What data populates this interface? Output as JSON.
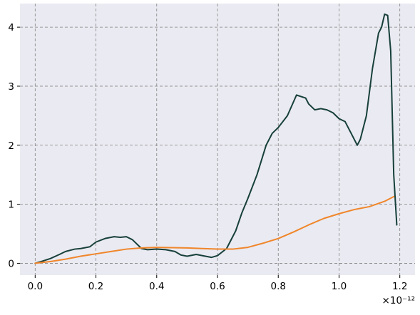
{
  "chart_data": {
    "type": "line",
    "title": "",
    "xlabel": "",
    "ylabel": "",
    "x_scale_label": "×10⁻¹²",
    "xlim": [
      -5e-14,
      1.25e-12
    ],
    "ylim": [
      -0.2,
      4.4
    ],
    "x_ticks": [
      0,
      2e-13,
      4e-13,
      6e-13,
      8e-13,
      1e-12,
      1.2e-12
    ],
    "x_tick_labels": [
      "0.0",
      "0.2",
      "0.4",
      "0.6",
      "0.8",
      "1.0",
      "1.2"
    ],
    "y_ticks": [
      0,
      1,
      2,
      3,
      4
    ],
    "y_tick_labels": [
      "0",
      "1",
      "2",
      "3",
      "4"
    ],
    "grid": true,
    "colors": {
      "plot_background": "#eaeaf2",
      "grid": "#808080",
      "dark_series": "#17403a",
      "orange_series": "#f0862a"
    },
    "series": [
      {
        "color": "#17403a",
        "x": [
          0,
          2e-14,
          5e-14,
          8e-14,
          1e-13,
          1.3e-13,
          1.5e-13,
          1.8e-13,
          2e-13,
          2.3e-13,
          2.6e-13,
          2.8e-13,
          3e-13,
          3.2e-13,
          3.5e-13,
          3.7e-13,
          4e-13,
          4.3e-13,
          4.6e-13,
          4.8e-13,
          5e-13,
          5.3e-13,
          5.6e-13,
          5.8e-13,
          6e-13,
          6.3e-13,
          6.6e-13,
          6.8e-13,
          7e-13,
          7.3e-13,
          7.6e-13,
          7.8e-13,
          8e-13,
          8.3e-13,
          8.6e-13,
          8.9e-13,
          9e-13,
          9.2e-13,
          9.4e-13,
          9.6e-13,
          9.8e-13,
          1e-12,
          1.02e-12,
          1.04e-12,
          1.06e-12,
          1.07e-12,
          1.09e-12,
          1.11e-12,
          1.13e-12,
          1.14e-12,
          1.15e-12,
          1.16e-12,
          1.17e-12,
          1.18e-12,
          1.19e-12
        ],
        "y": [
          0,
          0.03,
          0.08,
          0.15,
          0.2,
          0.24,
          0.25,
          0.28,
          0.36,
          0.42,
          0.45,
          0.44,
          0.45,
          0.4,
          0.25,
          0.23,
          0.24,
          0.23,
          0.2,
          0.14,
          0.12,
          0.15,
          0.12,
          0.1,
          0.13,
          0.25,
          0.55,
          0.85,
          1.1,
          1.5,
          2.0,
          2.2,
          2.3,
          2.5,
          2.85,
          2.8,
          2.7,
          2.6,
          2.62,
          2.6,
          2.55,
          2.45,
          2.4,
          2.2,
          2.0,
          2.1,
          2.5,
          3.3,
          3.9,
          4.0,
          4.22,
          4.2,
          3.6,
          1.5,
          0.65
        ]
      },
      {
        "color": "#f0862a",
        "x": [
          0,
          5e-14,
          1e-13,
          1.5e-13,
          2e-13,
          2.5e-13,
          3e-13,
          3.5e-13,
          4e-13,
          4.5e-13,
          5e-13,
          5.5e-13,
          6e-13,
          6.5e-13,
          7e-13,
          7.5e-13,
          8e-13,
          8.5e-13,
          9e-13,
          9.5e-13,
          1e-12,
          1.05e-12,
          1.1e-12,
          1.15e-12,
          1.18e-12
        ],
        "y": [
          0,
          0.03,
          0.07,
          0.12,
          0.16,
          0.2,
          0.24,
          0.26,
          0.27,
          0.265,
          0.26,
          0.25,
          0.24,
          0.24,
          0.27,
          0.34,
          0.42,
          0.53,
          0.65,
          0.76,
          0.84,
          0.91,
          0.96,
          1.05,
          1.13
        ]
      }
    ]
  }
}
